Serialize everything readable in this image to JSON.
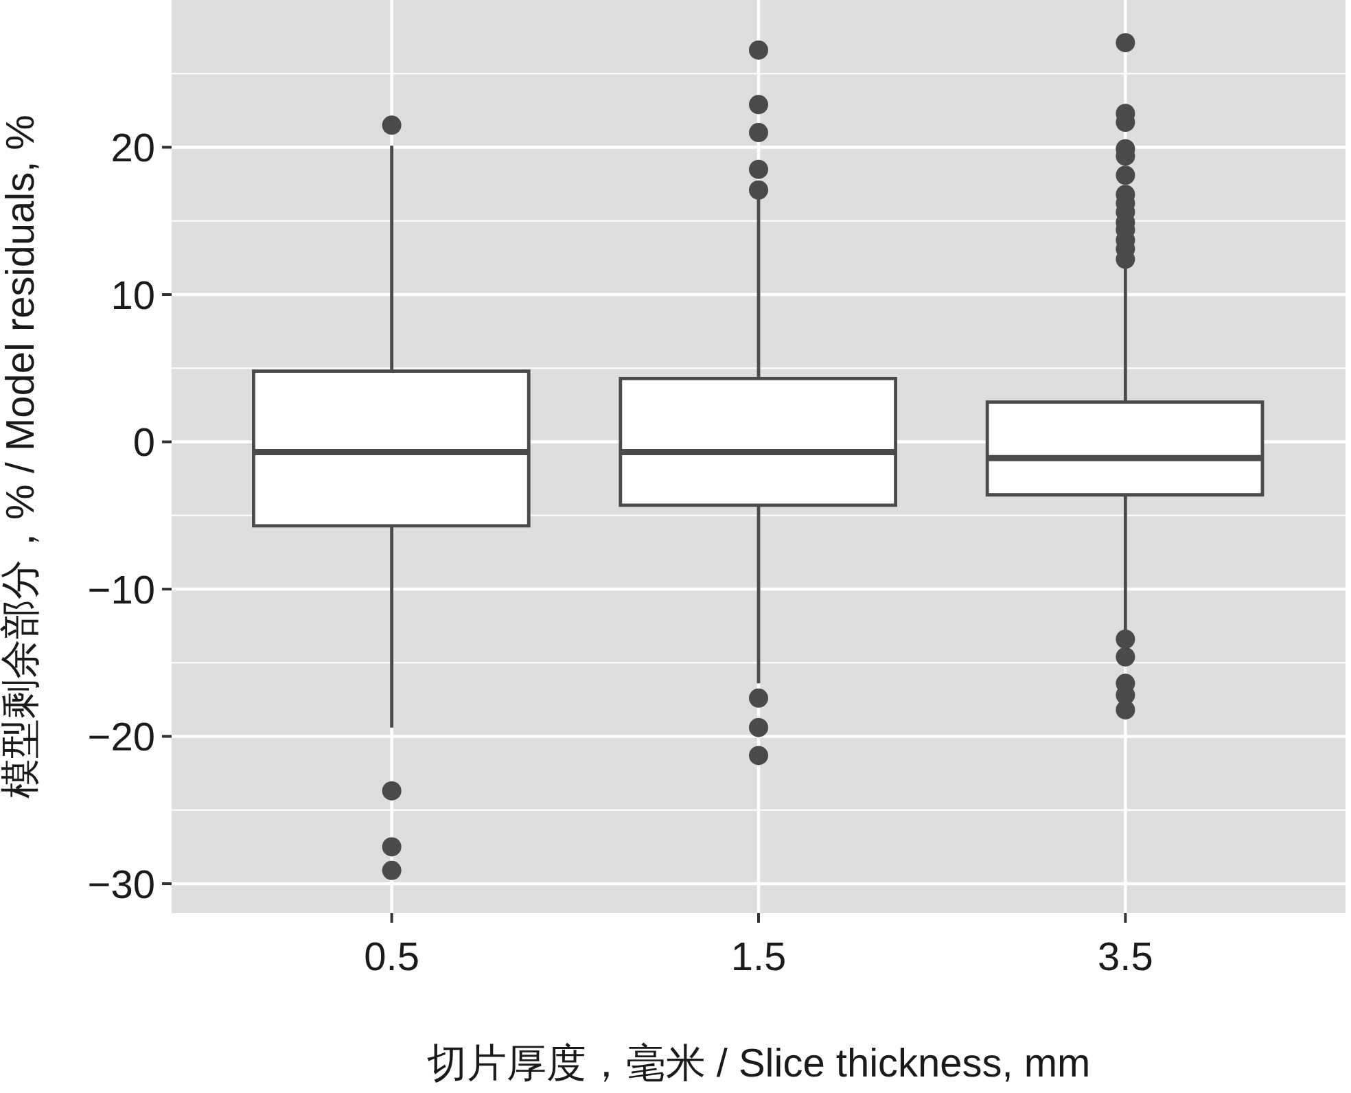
{
  "chart_data": {
    "type": "box",
    "xlabel": "切片厚度，毫米 / Slice thickness, mm",
    "ylabel": "模型剩余部分，% / Model residuals, %",
    "categories": [
      "0.5",
      "1.5",
      "3.5"
    ],
    "boxes": [
      {
        "low": -19.4,
        "q1": -5.7,
        "median": -0.7,
        "q3": 4.8,
        "high": 20.1,
        "outliers": [
          21.5,
          -23.7,
          -27.5,
          -29.1
        ]
      },
      {
        "low": -16.4,
        "q1": -4.3,
        "median": -0.7,
        "q3": 4.3,
        "high": 16.7,
        "outliers": [
          26.6,
          22.9,
          21.0,
          18.5,
          17.1,
          -17.4,
          -19.4,
          -21.3
        ]
      },
      {
        "low": -13.0,
        "q1": -3.6,
        "median": -1.1,
        "q3": 2.7,
        "high": 11.8,
        "outliers": [
          27.1,
          22.3,
          21.7,
          19.9,
          19.4,
          18.1,
          16.8,
          16.2,
          15.6,
          14.9,
          14.4,
          13.7,
          13.1,
          12.4,
          -13.4,
          -14.6,
          -16.4,
          -17.2,
          -18.2
        ]
      }
    ],
    "color": "#4a4a4a",
    "ylim": [
      -32,
      30
    ],
    "yticks": [
      {
        "value": -30,
        "label": "−30"
      },
      {
        "value": -20,
        "label": "−20"
      },
      {
        "value": -10,
        "label": "−10"
      },
      0,
      10,
      20
    ],
    "grid": true
  }
}
